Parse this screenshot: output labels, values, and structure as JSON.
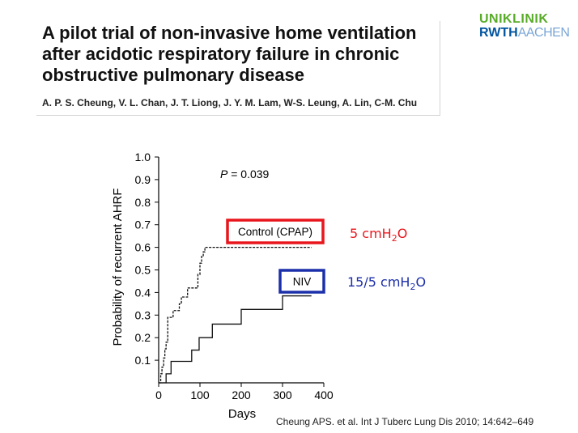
{
  "header": {
    "title": "A pilot trial of non-invasive home ventilation after acidotic respiratory failure in chronic obstructive pulmonary disease",
    "authors": "A. P. S. Cheung, V. L. Chan, J. T. Liong, J. Y. M. Lam, W-S. Leung, A. Lin, C-M. Chu"
  },
  "logo": {
    "line1": "UNIKLINIK",
    "line2a": "RWTH",
    "line2b": "AACHEN"
  },
  "citation": "Cheung APS. et al. Int J Tuberc Lung Dis 2010; 14:642–649",
  "chart_data": {
    "type": "line",
    "subtype": "kaplan-meier step",
    "xlabel": "Days",
    "ylabel": "Probability of recurrent AHRF",
    "xlim": [
      0,
      400
    ],
    "ylim": [
      0,
      1.0
    ],
    "xticks": [
      "0",
      "100",
      "200",
      "300",
      "400"
    ],
    "yticks": [
      "0.1",
      "0.2",
      "0.3",
      "0.4",
      "0.5",
      "0.6",
      "0.7",
      "0.8",
      "0.9",
      "1.0"
    ],
    "annotation": {
      "italic": "P",
      "text": " = 0.039"
    },
    "series": [
      {
        "name": "Control (CPAP)",
        "pressure": "5 cmH",
        "pressure_sub": "2",
        "pressure_tail": "O",
        "box_color": "#e8161c",
        "text_color": "#e8161c",
        "x": [
          0,
          5,
          8,
          12,
          15,
          18,
          22,
          35,
          50,
          55,
          70,
          95,
          100,
          104,
          108,
          112,
          370
        ],
        "y": [
          0,
          0.04,
          0.07,
          0.11,
          0.15,
          0.18,
          0.29,
          0.32,
          0.35,
          0.38,
          0.42,
          0.48,
          0.53,
          0.56,
          0.58,
          0.6,
          0.6
        ]
      },
      {
        "name": "NIV",
        "pressure": "15/5 cmH",
        "pressure_sub": "2",
        "pressure_tail": "O",
        "box_color": "#1c2faa",
        "text_color": "#1c2faa",
        "x": [
          0,
          18,
          30,
          80,
          98,
          130,
          200,
          300,
          370
        ],
        "y": [
          0,
          0.04,
          0.095,
          0.145,
          0.2,
          0.26,
          0.325,
          0.385,
          0.385
        ]
      }
    ]
  }
}
